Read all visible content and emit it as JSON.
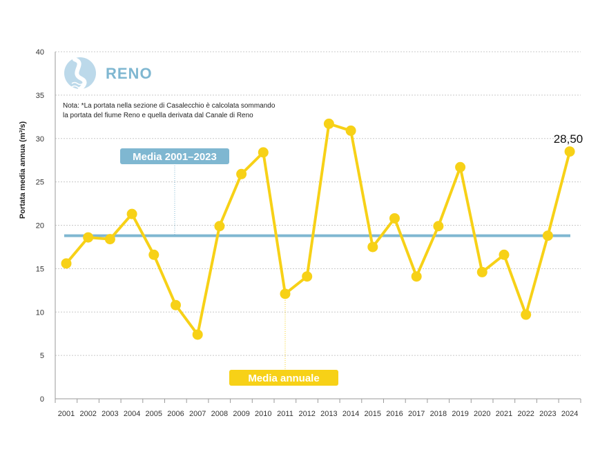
{
  "chart_data": {
    "type": "line",
    "ylabel": "Portata media annua (m³/s)",
    "ylim": [
      0,
      40
    ],
    "yticks": [
      0,
      5,
      10,
      15,
      20,
      25,
      30,
      35,
      40
    ],
    "grid": true,
    "categories": [
      "2001",
      "2002",
      "2003",
      "2004",
      "2005",
      "2006",
      "2007",
      "2008",
      "2009",
      "2010",
      "2011",
      "2012",
      "2013",
      "2014",
      "2015",
      "2016",
      "2017",
      "2018",
      "2019",
      "2020",
      "2021",
      "2022",
      "2023",
      "2024"
    ],
    "series": [
      {
        "values": [
          15.6,
          18.6,
          18.4,
          21.3,
          16.6,
          10.8,
          7.4,
          19.9,
          25.9,
          28.4,
          12.1,
          14.1,
          31.7,
          30.9,
          17.5,
          20.8,
          14.1,
          19.9,
          26.7,
          14.6,
          16.6,
          9.7,
          18.8,
          28.5
        ],
        "color": "#f7d117"
      }
    ],
    "average": {
      "value": 18.8,
      "color": "#7fb7d1"
    },
    "labels": {
      "average": "Media 2001–2023",
      "annual": "Media annuale",
      "last_value": "28,50"
    },
    "logo_text": "RENO",
    "note_lines": [
      "Nota: *La portata nella sezione di Casalecchio è calcolata sommando",
      "la portata del fiume Reno e quella derivata dal Canale di Reno"
    ]
  }
}
